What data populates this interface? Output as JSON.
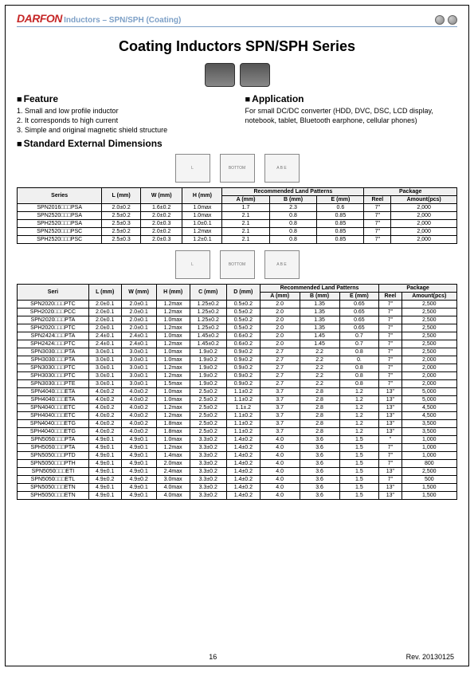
{
  "header": {
    "logo_text": "DARFON",
    "subtitle": "Inductors – SPN/SPH (Coating)"
  },
  "title": "Coating Inductors SPN/SPH Series",
  "feature": {
    "heading": "Feature",
    "items": [
      "1. Small and low profile inductor",
      "2. It corresponds to high current",
      "3. Simple and original magnetic shield structure"
    ]
  },
  "application": {
    "heading": "Application",
    "text": "For small DC/DC converter (HDD, DVC, DSC, LCD display, notebook, tablet, Bluetooth earphone, cellular phones)"
  },
  "dimensions_heading": "Standard External Dimensions",
  "table1": {
    "group_headers": [
      "Series",
      "L (mm)",
      "W (mm)",
      "H (mm)",
      "Recommended Land Patterns",
      "Package"
    ],
    "sub_headers_land": [
      "A (mm)",
      "B (mm)",
      "E (mm)"
    ],
    "sub_headers_pkg": [
      "Reel",
      "Amount(pcs)"
    ],
    "rows": [
      {
        "series": "SPN2016□□□PSA",
        "l": "2.0±0.2",
        "w": "1.6±0.2",
        "h": "1.0max",
        "a": "1.7",
        "b": "2.3",
        "e": "0.6",
        "reel": "7\"",
        "amt": "2,000"
      },
      {
        "series": "SPN2520□□□PSA",
        "l": "2.5±0.2",
        "w": "2.0±0.2",
        "h": "1.0max",
        "a": "2.1",
        "b": "0.8",
        "e": "0.85",
        "reel": "7\"",
        "amt": "2,000"
      },
      {
        "series": "SPH2520□□□PSA",
        "l": "2.5±0.3",
        "w": "2.0±0.3",
        "h": "1.0±0.1",
        "a": "2.1",
        "b": "0.8",
        "e": "0.85",
        "reel": "7\"",
        "amt": "2,000"
      },
      {
        "series": "SPN2520□□□PSC",
        "l": "2.5±0.2",
        "w": "2.0±0.2",
        "h": "1.2max",
        "a": "2.1",
        "b": "0.8",
        "e": "0.85",
        "reel": "7\"",
        "amt": "2,000"
      },
      {
        "series": "SPH2520□□□PSC",
        "l": "2.5±0.3",
        "w": "2.0±0.3",
        "h": "1.2±0.1",
        "a": "2.1",
        "b": "0.8",
        "e": "0.85",
        "reel": "7\"",
        "amt": "2,000"
      }
    ]
  },
  "table2": {
    "group_headers": [
      "Seri",
      "L (mm)",
      "W (mm)",
      "H (mm)",
      "C (mm)",
      "D (mm)",
      "Recommended Land Patterns",
      "Package"
    ],
    "sub_headers_land": [
      "A (mm)",
      "B (mm)",
      "E (mm)"
    ],
    "sub_headers_pkg": [
      "Reel",
      "Amount(pcs)"
    ],
    "rows": [
      {
        "s": "SPN2020□□□PTC",
        "l": "2.0±0.1",
        "w": "2.0±0.1",
        "h": "1.2max",
        "c": "1.25±0.2",
        "d": "0.5±0.2",
        "a": "2.0",
        "b": "1.35",
        "e": "0.65",
        "reel": "7\"",
        "amt": "2,500"
      },
      {
        "s": "SPH2020□□□PCC",
        "l": "2.0±0.1",
        "w": "2.0±0.1",
        "h": "1.2max",
        "c": "1.25±0.2",
        "d": "0.5±0.2",
        "a": "2.0",
        "b": "1.35",
        "e": "0.65",
        "reel": "7\"",
        "amt": "2,500"
      },
      {
        "s": "SPN2020□□□PTA",
        "l": "2.0±0.1",
        "w": "2.0±0.1",
        "h": "1.0max",
        "c": "1.25±0.2",
        "d": "0.5±0.2",
        "a": "2.0",
        "b": "1.35",
        "e": "0.65",
        "reel": "7\"",
        "amt": "2,500"
      },
      {
        "s": "SPH2020□□□PTC",
        "l": "2.0±0.1",
        "w": "2.0±0.1",
        "h": "1.2max",
        "c": "1.25±0.2",
        "d": "0.5±0.2",
        "a": "2.0",
        "b": "1.35",
        "e": "0.65",
        "reel": "7\"",
        "amt": "2,500"
      },
      {
        "s": "SPN2424□□□PTA",
        "l": "2.4±0.1",
        "w": "2.4±0.1",
        "h": "1.0max",
        "c": "1.45±0.2",
        "d": "0.6±0.2",
        "a": "2.0",
        "b": "1.45",
        "e": "0.7",
        "reel": "7\"",
        "amt": "2,500"
      },
      {
        "s": "SPH2424□□□PTC",
        "l": "2.4±0.1",
        "w": "2.4±0.1",
        "h": "1.2max",
        "c": "1.45±0.2",
        "d": "0.6±0.2",
        "a": "2.0",
        "b": "1.45",
        "e": "0.7",
        "reel": "7\"",
        "amt": "2,500"
      },
      {
        "s": "SPN3030□□□PTA",
        "l": "3.0±0.1",
        "w": "3.0±0.1",
        "h": "1.0max",
        "c": "1.9±0.2",
        "d": "0.9±0.2",
        "a": "2.7",
        "b": "2.2",
        "e": "0.8",
        "reel": "7\"",
        "amt": "2,500"
      },
      {
        "s": "SPH3030□□□PTA",
        "l": "3.0±0.1",
        "w": "3.0±0.1",
        "h": "1.0max",
        "c": "1.9±0.2",
        "d": "0.9±0.2",
        "a": "2.7",
        "b": "2.2",
        "e": "0.",
        "reel": "7\"",
        "amt": "2,000"
      },
      {
        "s": "SPN3030□□□PTC",
        "l": "3.0±0.1",
        "w": "3.0±0.1",
        "h": "1.2max",
        "c": "1.9±0.2",
        "d": "0.9±0.2",
        "a": "2.7",
        "b": "2.2",
        "e": "0.8",
        "reel": "7\"",
        "amt": "2,000"
      },
      {
        "s": "SPH3030□□□PTC",
        "l": "3.0±0.1",
        "w": "3.0±0.1",
        "h": "1.2max",
        "c": "1.9±0.2",
        "d": "0.9±0.2",
        "a": "2.7",
        "b": "2.2",
        "e": "0.8",
        "reel": "7\"",
        "amt": "2,000"
      },
      {
        "s": "SPN3030□□□PTE",
        "l": "3.0±0.1",
        "w": "3.0±0.1",
        "h": "1.5max",
        "c": "1.9±0.2",
        "d": "0.9±0.2",
        "a": "2.7",
        "b": "2.2",
        "e": "0.8",
        "reel": "7\"",
        "amt": "2,000"
      },
      {
        "s": "SPN4040□□□ETA",
        "l": "4.0±0.2",
        "w": "4.0±0.2",
        "h": "1.0max",
        "c": "2.5±0.2",
        "d": "1.1±0.2",
        "a": "3.7",
        "b": "2.8",
        "e": "1.2",
        "reel": "13\"",
        "amt": "5,000"
      },
      {
        "s": "SPH4040□□□ETA",
        "l": "4.0±0.2",
        "w": "4.0±0.2",
        "h": "1.0max",
        "c": "2.5±0.2",
        "d": "1.1±0.2",
        "a": "3.7",
        "b": "2.8",
        "e": "1.2",
        "reel": "13\"",
        "amt": "5,000"
      },
      {
        "s": "SPN4040□□□ETC",
        "l": "4.0±0.2",
        "w": "4.0±0.2",
        "h": "1.2max",
        "c": "2.5±0.2",
        "d": "1.1±.2",
        "a": "3.7",
        "b": "2.8",
        "e": "1.2",
        "reel": "13\"",
        "amt": "4,500"
      },
      {
        "s": "SPH4040□□□ETC",
        "l": "4.0±0.2",
        "w": "4.0±0.2",
        "h": "1.2max",
        "c": "2.5±0.2",
        "d": "1.1±0.2",
        "a": "3.7",
        "b": "2.8",
        "e": "1.2",
        "reel": "13\"",
        "amt": "4,500"
      },
      {
        "s": "SPN4040□□□ETG",
        "l": "4.0±0.2",
        "w": "4.0±0.2",
        "h": "1.8max",
        "c": "2.5±0.2",
        "d": "1.1±0.2",
        "a": "3.7",
        "b": "2.8",
        "e": "1.2",
        "reel": "13\"",
        "amt": "3,500"
      },
      {
        "s": "SPH4040□□□ETG",
        "l": "4.0±0.2",
        "w": "4.0±0.2",
        "h": "1.8max",
        "c": "2.5±0.2",
        "d": "1.1±0.2",
        "a": "3.7",
        "b": "2.8",
        "e": "1.2",
        "reel": "13\"",
        "amt": "3,500"
      },
      {
        "s": "SPN5050□□□PTA",
        "l": "4.9±0.1",
        "w": "4.9±0.1",
        "h": "1.0max",
        "c": "3.3±0.2",
        "d": "1.4±0.2",
        "a": "4.0",
        "b": "3.6",
        "e": "1.5",
        "reel": "\"",
        "amt": "1,000"
      },
      {
        "s": "SPH5050□□□PTA",
        "l": "4.9±0.1",
        "w": "4.9±0.1",
        "h": "1.2max",
        "c": "3.3±0.2",
        "d": "1.4±0.2",
        "a": "4.0",
        "b": "3.6",
        "e": "1.5",
        "reel": "7\"",
        "amt": "1,000"
      },
      {
        "s": "SPN5050□□□PTD",
        "l": "4.9±0.1",
        "w": "4.9±0.1",
        "h": "1.4max",
        "c": "3.3±0.2",
        "d": "1.4±0.2",
        "a": "4.0",
        "b": "3.6",
        "e": "1.5",
        "reel": "7\"",
        "amt": "1,000"
      },
      {
        "s": "SPN5050□□□PTH",
        "l": "4.9±0.1",
        "w": "4.9±0.1",
        "h": "2.0max",
        "c": "3.3±0.2",
        "d": "1.4±0.2",
        "a": "4.0",
        "b": "3.6",
        "e": "1.5",
        "reel": "7\"",
        "amt": "800"
      },
      {
        "s": "SPN5050□□□ETI",
        "l": "4.9±0.1",
        "w": "4.9±0.1",
        "h": "2.4max",
        "c": "3.3±0.2",
        "d": "1.4±0.2",
        "a": "4.0",
        "b": "3.6",
        "e": "1.5",
        "reel": "13\"",
        "amt": "2,500"
      },
      {
        "s": "SPN5050□□□ETL",
        "l": "4.9±0.2",
        "w": "4.9±0.2",
        "h": "3.0max",
        "c": "3.3±0.2",
        "d": "1.4±0.2",
        "a": "4.0",
        "b": "3.6",
        "e": "1.5",
        "reel": "7\"",
        "amt": "500"
      },
      {
        "s": "SPN5050□□□ETN",
        "l": "4.9±0.1",
        "w": "4.9±0.1",
        "h": "4.0max",
        "c": "3.3±0.2",
        "d": "1.4±0.2",
        "a": "4.0",
        "b": "3.6",
        "e": "1.5",
        "reel": "13\"",
        "amt": "1,500"
      },
      {
        "s": "SPH5050□□□ETN",
        "l": "4.9±0.1",
        "w": "4.9±0.1",
        "h": "4.0max",
        "c": "3.3±0.2",
        "d": "1.4±0.2",
        "a": "4.0",
        "b": "3.6",
        "e": "1.5",
        "reel": "13\"",
        "amt": "1,500"
      }
    ]
  },
  "footer": {
    "page": "16",
    "rev": "Rev. 20130125"
  }
}
